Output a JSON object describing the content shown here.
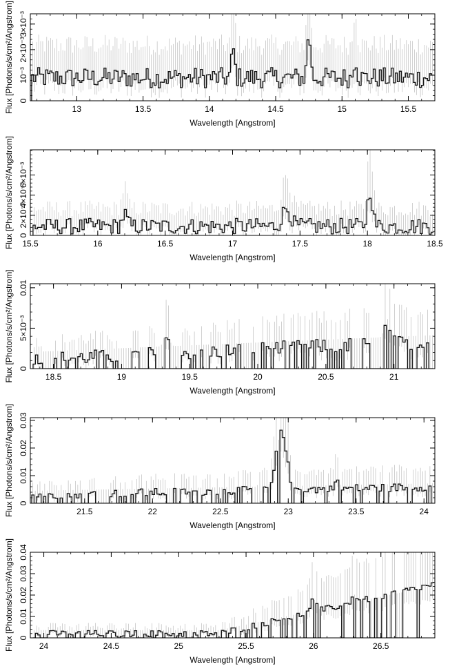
{
  "chart_data": [
    {
      "type": "line",
      "xlabel": "Wavelength [Angstrom]",
      "ylabel": "Flux [Photons/s/cm²/Angstrom]",
      "xlim": [
        12.65,
        15.7
      ],
      "ylim": [
        0,
        0.0034
      ],
      "xticks": [
        13,
        13.5,
        14,
        14.5,
        15,
        15.5
      ],
      "xtick_labels": [
        "13",
        "13.5",
        "14",
        "14.5",
        "15",
        "15.5"
      ],
      "yticks": [
        0,
        0.001,
        0.002,
        0.003
      ],
      "ytick_labels": [
        "0",
        "10⁻³",
        "2×10⁻³",
        "3×10⁻³"
      ],
      "spectrum": {
        "x_range": [
          12.66,
          15.69
        ],
        "n_bins": 200,
        "base": 0.0009,
        "noise": 0.0004,
        "features": [
          {
            "center": 14.75,
            "width": 0.004,
            "peak": 0.0018
          },
          {
            "center": 14.18,
            "width": 0.004,
            "peak": 0.0011
          },
          {
            "center": 15.1,
            "width": 0.004,
            "peak": 0.0008
          }
        ]
      }
    },
    {
      "type": "line",
      "xlabel": "Wavelength [Angstrom]",
      "ylabel": "Flux [Photons/s/cm²/Angstrom]",
      "xlim": [
        15.5,
        18.5
      ],
      "ylim": [
        0,
        0.0085
      ],
      "xticks": [
        15.5,
        16,
        16.5,
        17,
        17.5,
        18,
        18.5
      ],
      "xtick_labels": [
        "15.5",
        "16",
        "16.5",
        "17",
        "17.5",
        "18",
        "18.5"
      ],
      "yticks": [
        0,
        0.002,
        0.004,
        0.006
      ],
      "ytick_labels": [
        "0",
        "2×10⁻³",
        "4×10⁻³",
        "6×10⁻³"
      ],
      "spectrum": {
        "x_range": [
          15.52,
          18.49
        ],
        "n_bins": 180,
        "base": 0.0009,
        "noise": 0.0008,
        "features": [
          {
            "center": 18.02,
            "width": 0.006,
            "peak": 0.0035
          },
          {
            "center": 17.4,
            "width": 0.01,
            "peak": 0.0018
          },
          {
            "center": 16.2,
            "width": 0.006,
            "peak": 0.0012
          }
        ]
      }
    },
    {
      "type": "line",
      "xlabel": "Wavelength [Angstrom]",
      "ylabel": "Flux [Photons/s/cm²/Angstrom]",
      "xlim": [
        18.33,
        21.3
      ],
      "ylim": [
        0,
        0.0105
      ],
      "xticks": [
        18.5,
        19,
        19.5,
        20,
        20.5,
        21
      ],
      "xtick_labels": [
        "18.5",
        "19",
        "19.5",
        "20",
        "20.5",
        "21"
      ],
      "yticks": [
        0,
        0.005,
        0.01
      ],
      "ytick_labels": [
        "0",
        "5×10⁻³",
        "0.01"
      ],
      "spectrum": {
        "x_range": [
          18.35,
          21.29
        ],
        "n_bins": 170,
        "base": 0.0011,
        "slope_end": 0.0034,
        "noise": 0.0009,
        "sparse": 0.45,
        "features": [
          {
            "center": 20.95,
            "width": 0.006,
            "peak": 0.0025
          },
          {
            "center": 19.33,
            "width": 0.006,
            "peak": 0.0022
          }
        ]
      }
    },
    {
      "type": "line",
      "xlabel": "Wavelength [Angstrom]",
      "ylabel": "Flux [Photons/s/cm²/Angstrom]",
      "xlim": [
        21.1,
        24.08
      ],
      "ylim": [
        0,
        0.031
      ],
      "xticks": [
        21.5,
        22,
        22.5,
        23,
        23.5,
        24
      ],
      "xtick_labels": [
        "21.5",
        "22",
        "22.5",
        "23",
        "23.5",
        "24"
      ],
      "yticks": [
        0,
        0.01,
        0.02,
        0.03
      ],
      "ytick_labels": [
        "0",
        "0.01",
        "0.02",
        "0.03"
      ],
      "spectrum": {
        "x_range": [
          21.11,
          24.07
        ],
        "n_bins": 170,
        "base": 0.003,
        "slope_end": 0.006,
        "noise": 0.0015,
        "sparse": 0.35,
        "features": [
          {
            "center": 22.95,
            "width": 0.012,
            "peak": 0.022
          },
          {
            "center": 22.8,
            "width": 0.004,
            "peak": 0.008
          },
          {
            "center": 23.35,
            "width": 0.004,
            "peak": 0.004
          }
        ]
      }
    },
    {
      "type": "line",
      "xlabel": "Wavelength [Angstrom]",
      "ylabel": "Flux [Photons/s/cm²/Angstrom]",
      "xlim": [
        23.9,
        26.9
      ],
      "ylim": [
        0,
        0.04
      ],
      "xticks": [
        24,
        24.5,
        25,
        25.5,
        26,
        26.5
      ],
      "xtick_labels": [
        "24",
        "24.5",
        "25",
        "25.5",
        "26",
        "26.5"
      ],
      "yticks": [
        0,
        0.01,
        0.02,
        0.03,
        0.04
      ],
      "ytick_labels": [
        "0",
        "0.01",
        "0.02",
        "0.03",
        "0.04"
      ],
      "spectrum": {
        "x_range": [
          23.92,
          26.89
        ],
        "n_bins": 170,
        "base": 0.002,
        "slope_end": 0.025,
        "slope_start_x": 25.3,
        "noise": 0.0015,
        "sparse": 0.25,
        "features": [
          {
            "center": 26.0,
            "width": 0.006,
            "peak": 0.006
          },
          {
            "center": 26.3,
            "width": 0.006,
            "peak": 0.004
          }
        ]
      }
    }
  ]
}
